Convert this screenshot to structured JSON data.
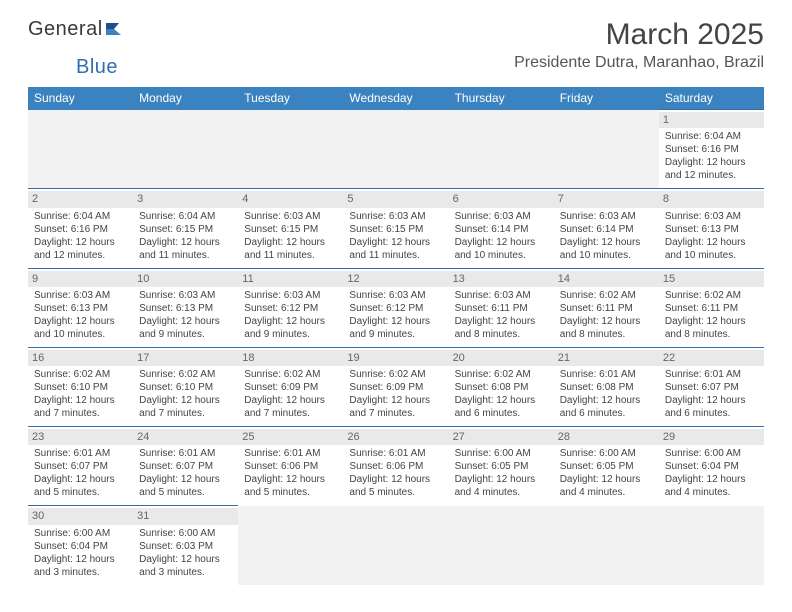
{
  "logo": {
    "text1": "General",
    "text2": "Blue",
    "icon_color": "#2f6fb0"
  },
  "title": "March 2025",
  "location": "Presidente Dutra, Maranhao, Brazil",
  "colors": {
    "header_bg": "#3b83c0",
    "header_text": "#ffffff",
    "cell_border": "#2f6fb0",
    "daynum_bg": "#e9e9e9",
    "empty_bg": "#f2f2f2"
  },
  "weekdays": [
    "Sunday",
    "Monday",
    "Tuesday",
    "Wednesday",
    "Thursday",
    "Friday",
    "Saturday"
  ],
  "weeks": [
    [
      null,
      null,
      null,
      null,
      null,
      null,
      {
        "n": "1",
        "sr": "Sunrise: 6:04 AM",
        "ss": "Sunset: 6:16 PM",
        "dl": "Daylight: 12 hours and 12 minutes."
      }
    ],
    [
      {
        "n": "2",
        "sr": "Sunrise: 6:04 AM",
        "ss": "Sunset: 6:16 PM",
        "dl": "Daylight: 12 hours and 12 minutes."
      },
      {
        "n": "3",
        "sr": "Sunrise: 6:04 AM",
        "ss": "Sunset: 6:15 PM",
        "dl": "Daylight: 12 hours and 11 minutes."
      },
      {
        "n": "4",
        "sr": "Sunrise: 6:03 AM",
        "ss": "Sunset: 6:15 PM",
        "dl": "Daylight: 12 hours and 11 minutes."
      },
      {
        "n": "5",
        "sr": "Sunrise: 6:03 AM",
        "ss": "Sunset: 6:15 PM",
        "dl": "Daylight: 12 hours and 11 minutes."
      },
      {
        "n": "6",
        "sr": "Sunrise: 6:03 AM",
        "ss": "Sunset: 6:14 PM",
        "dl": "Daylight: 12 hours and 10 minutes."
      },
      {
        "n": "7",
        "sr": "Sunrise: 6:03 AM",
        "ss": "Sunset: 6:14 PM",
        "dl": "Daylight: 12 hours and 10 minutes."
      },
      {
        "n": "8",
        "sr": "Sunrise: 6:03 AM",
        "ss": "Sunset: 6:13 PM",
        "dl": "Daylight: 12 hours and 10 minutes."
      }
    ],
    [
      {
        "n": "9",
        "sr": "Sunrise: 6:03 AM",
        "ss": "Sunset: 6:13 PM",
        "dl": "Daylight: 12 hours and 10 minutes."
      },
      {
        "n": "10",
        "sr": "Sunrise: 6:03 AM",
        "ss": "Sunset: 6:13 PM",
        "dl": "Daylight: 12 hours and 9 minutes."
      },
      {
        "n": "11",
        "sr": "Sunrise: 6:03 AM",
        "ss": "Sunset: 6:12 PM",
        "dl": "Daylight: 12 hours and 9 minutes."
      },
      {
        "n": "12",
        "sr": "Sunrise: 6:03 AM",
        "ss": "Sunset: 6:12 PM",
        "dl": "Daylight: 12 hours and 9 minutes."
      },
      {
        "n": "13",
        "sr": "Sunrise: 6:03 AM",
        "ss": "Sunset: 6:11 PM",
        "dl": "Daylight: 12 hours and 8 minutes."
      },
      {
        "n": "14",
        "sr": "Sunrise: 6:02 AM",
        "ss": "Sunset: 6:11 PM",
        "dl": "Daylight: 12 hours and 8 minutes."
      },
      {
        "n": "15",
        "sr": "Sunrise: 6:02 AM",
        "ss": "Sunset: 6:11 PM",
        "dl": "Daylight: 12 hours and 8 minutes."
      }
    ],
    [
      {
        "n": "16",
        "sr": "Sunrise: 6:02 AM",
        "ss": "Sunset: 6:10 PM",
        "dl": "Daylight: 12 hours and 7 minutes."
      },
      {
        "n": "17",
        "sr": "Sunrise: 6:02 AM",
        "ss": "Sunset: 6:10 PM",
        "dl": "Daylight: 12 hours and 7 minutes."
      },
      {
        "n": "18",
        "sr": "Sunrise: 6:02 AM",
        "ss": "Sunset: 6:09 PM",
        "dl": "Daylight: 12 hours and 7 minutes."
      },
      {
        "n": "19",
        "sr": "Sunrise: 6:02 AM",
        "ss": "Sunset: 6:09 PM",
        "dl": "Daylight: 12 hours and 7 minutes."
      },
      {
        "n": "20",
        "sr": "Sunrise: 6:02 AM",
        "ss": "Sunset: 6:08 PM",
        "dl": "Daylight: 12 hours and 6 minutes."
      },
      {
        "n": "21",
        "sr": "Sunrise: 6:01 AM",
        "ss": "Sunset: 6:08 PM",
        "dl": "Daylight: 12 hours and 6 minutes."
      },
      {
        "n": "22",
        "sr": "Sunrise: 6:01 AM",
        "ss": "Sunset: 6:07 PM",
        "dl": "Daylight: 12 hours and 6 minutes."
      }
    ],
    [
      {
        "n": "23",
        "sr": "Sunrise: 6:01 AM",
        "ss": "Sunset: 6:07 PM",
        "dl": "Daylight: 12 hours and 5 minutes."
      },
      {
        "n": "24",
        "sr": "Sunrise: 6:01 AM",
        "ss": "Sunset: 6:07 PM",
        "dl": "Daylight: 12 hours and 5 minutes."
      },
      {
        "n": "25",
        "sr": "Sunrise: 6:01 AM",
        "ss": "Sunset: 6:06 PM",
        "dl": "Daylight: 12 hours and 5 minutes."
      },
      {
        "n": "26",
        "sr": "Sunrise: 6:01 AM",
        "ss": "Sunset: 6:06 PM",
        "dl": "Daylight: 12 hours and 5 minutes."
      },
      {
        "n": "27",
        "sr": "Sunrise: 6:00 AM",
        "ss": "Sunset: 6:05 PM",
        "dl": "Daylight: 12 hours and 4 minutes."
      },
      {
        "n": "28",
        "sr": "Sunrise: 6:00 AM",
        "ss": "Sunset: 6:05 PM",
        "dl": "Daylight: 12 hours and 4 minutes."
      },
      {
        "n": "29",
        "sr": "Sunrise: 6:00 AM",
        "ss": "Sunset: 6:04 PM",
        "dl": "Daylight: 12 hours and 4 minutes."
      }
    ],
    [
      {
        "n": "30",
        "sr": "Sunrise: 6:00 AM",
        "ss": "Sunset: 6:04 PM",
        "dl": "Daylight: 12 hours and 3 minutes."
      },
      {
        "n": "31",
        "sr": "Sunrise: 6:00 AM",
        "ss": "Sunset: 6:03 PM",
        "dl": "Daylight: 12 hours and 3 minutes."
      },
      null,
      null,
      null,
      null,
      null
    ]
  ]
}
